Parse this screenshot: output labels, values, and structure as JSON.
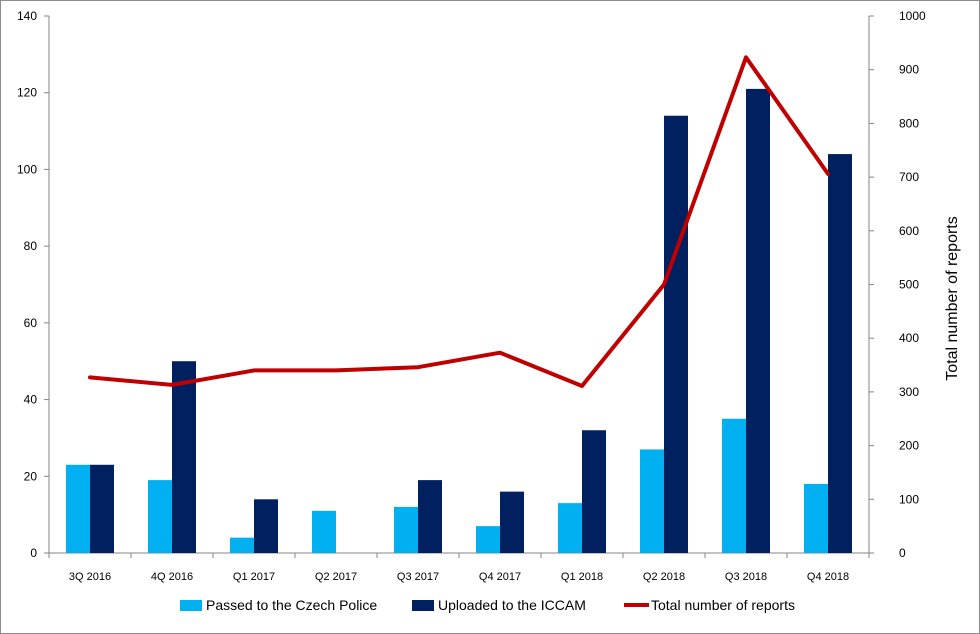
{
  "chart_data": {
    "type": "bar",
    "categories": [
      "3Q 2016",
      "4Q 2016",
      "Q1 2017",
      "Q2 2017",
      "Q3 2017",
      "Q4 2017",
      "Q1 2018",
      "Q2 2018",
      "Q3 2018",
      "Q4 2018"
    ],
    "series": [
      {
        "name": "Passed to the  Czech Police",
        "type": "bar",
        "axis": "left",
        "color": "#00b0f0",
        "values": [
          23,
          19,
          4,
          11,
          12,
          7,
          13,
          27,
          35,
          18
        ]
      },
      {
        "name": "Uploaded to the ICCAM",
        "type": "bar",
        "axis": "left",
        "color": "#002060",
        "values": [
          23,
          50,
          14,
          0,
          19,
          16,
          32,
          114,
          121,
          104
        ]
      },
      {
        "name": "Total number of reports",
        "type": "line",
        "axis": "right",
        "color": "#c00000",
        "values": [
          327,
          313,
          340,
          340,
          346,
          373,
          311,
          500,
          923,
          706
        ]
      }
    ],
    "y_left": {
      "label": "",
      "ylim": [
        0,
        140
      ],
      "ticks": [
        0,
        20,
        40,
        60,
        80,
        100,
        120,
        140
      ]
    },
    "y_right": {
      "label": "Total number of reports",
      "ylim": [
        0,
        1000
      ],
      "ticks": [
        0,
        100,
        200,
        300,
        400,
        500,
        600,
        700,
        800,
        900,
        1000
      ]
    },
    "title": "",
    "xlabel": "",
    "grid": false,
    "legend_position": "bottom"
  }
}
